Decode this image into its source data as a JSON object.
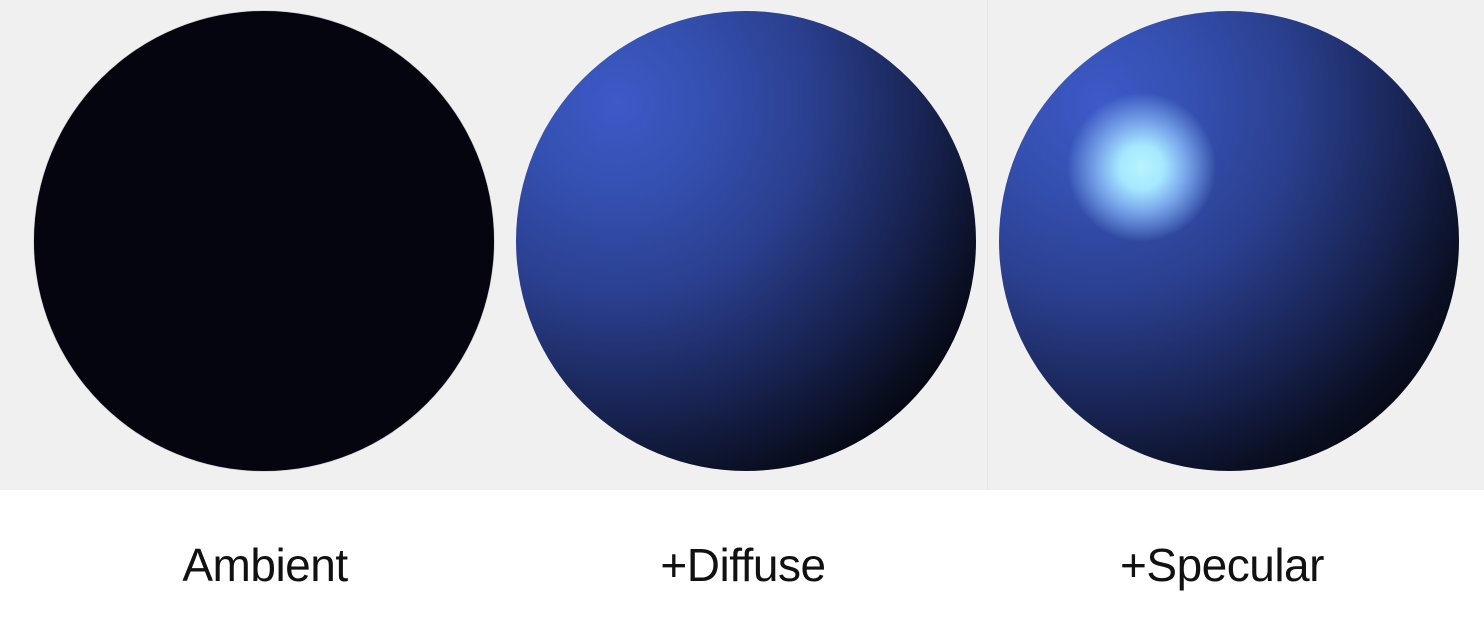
{
  "panels": [
    {
      "label": "Ambient"
    },
    {
      "label": "+Diffuse"
    },
    {
      "label": "+Specular"
    }
  ],
  "colors": {
    "background": "#f0f0f0",
    "sphere_base": "#05050f",
    "sphere_lit": "#3d5ac8",
    "specular_highlight": "#b8f4ff"
  }
}
